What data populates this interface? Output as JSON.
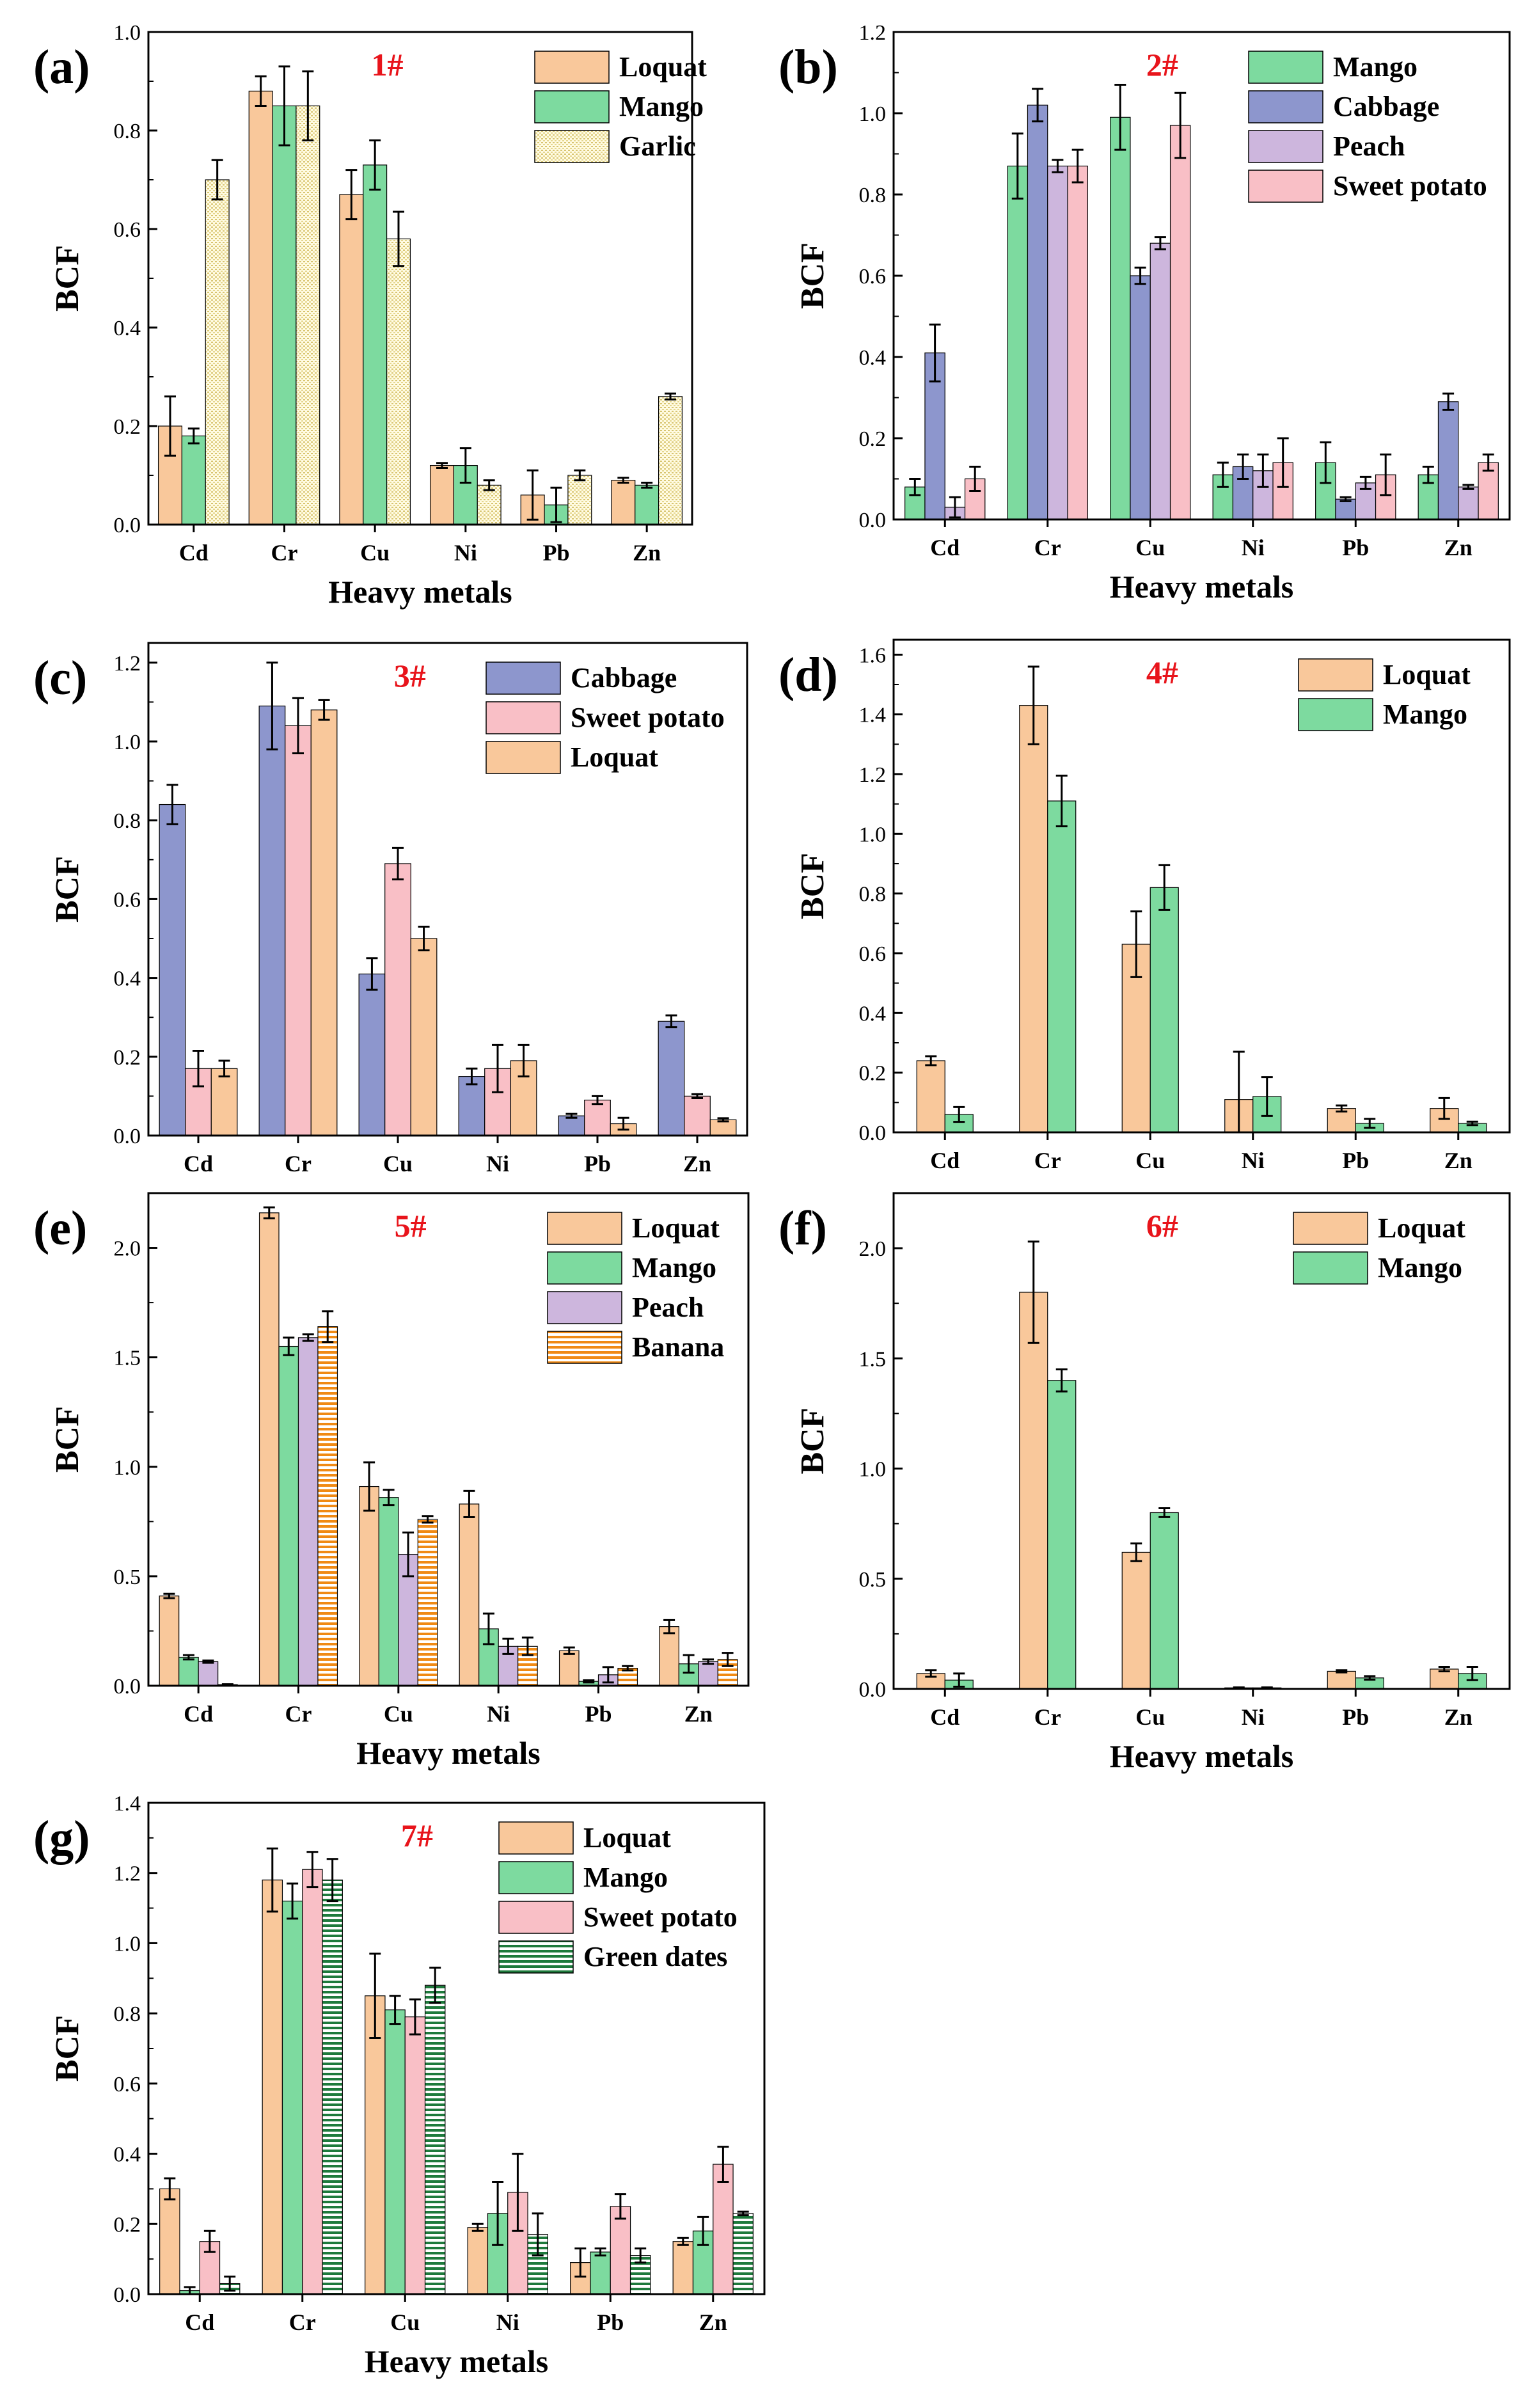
{
  "figure": {
    "metals": [
      "Cd",
      "Cr",
      "Cu",
      "Ni",
      "Pb",
      "Zn"
    ],
    "xlabel": "Heavy metals",
    "ylabel": "BCF"
  },
  "styles": {
    "Loquat": {
      "fill": "#F9C89B",
      "pattern": "solid"
    },
    "Mango": {
      "fill": "#7DDA9F",
      "pattern": "solid"
    },
    "Garlic": {
      "fill": "#FFFBE2",
      "pattern": "dots",
      "line": "#D8C470"
    },
    "Cabbage": {
      "fill": "#8D96CD",
      "pattern": "solid"
    },
    "Peach": {
      "fill": "#CDB6DD",
      "pattern": "solid"
    },
    "Sweet potato": {
      "fill": "#F9BFC6",
      "pattern": "solid"
    },
    "Banana": {
      "fill": "#FFFFFF",
      "pattern": "hstripe",
      "line": "#F08A14"
    },
    "Green dates": {
      "fill": "#FFFFFF",
      "pattern": "hstripe",
      "line": "#1E7A3C"
    }
  },
  "chart_data": [
    {
      "type": "bar",
      "panel": "(a)",
      "title": "1#",
      "ylim": [
        0,
        1.0
      ],
      "yticks": [
        0.0,
        0.2,
        0.4,
        0.6,
        0.8,
        1.0
      ],
      "yticklabels": [
        "0.0",
        "0.2",
        "0.4",
        "0.6",
        "0.8",
        "1.0"
      ],
      "ylabel": "BCF",
      "xlabel": "Heavy metals",
      "show_xlabel": true,
      "categories": [
        "Cd",
        "Cr",
        "Cu",
        "Ni",
        "Pb",
        "Zn"
      ],
      "legend": "top-right",
      "series": [
        {
          "name": "Loquat",
          "values": [
            0.2,
            0.88,
            0.67,
            0.12,
            0.06,
            0.09
          ],
          "errors": [
            0.06,
            0.03,
            0.05,
            0.005,
            0.05,
            0.005
          ]
        },
        {
          "name": "Mango",
          "values": [
            0.18,
            0.85,
            0.73,
            0.12,
            0.04,
            0.08
          ],
          "errors": [
            0.015,
            0.08,
            0.05,
            0.035,
            0.035,
            0.005
          ]
        },
        {
          "name": "Garlic",
          "values": [
            0.7,
            0.85,
            0.58,
            0.08,
            0.1,
            0.26
          ],
          "errors": [
            0.04,
            0.07,
            0.055,
            0.01,
            0.01,
            0.006
          ]
        }
      ]
    },
    {
      "type": "bar",
      "panel": "(b)",
      "title": "2#",
      "ylim": [
        0,
        1.2
      ],
      "yticks": [
        0.0,
        0.2,
        0.4,
        0.6,
        0.8,
        1.0,
        1.2
      ],
      "yticklabels": [
        "0.0",
        "0.2",
        "0.4",
        "0.6",
        "0.8",
        "1.0",
        "1.2"
      ],
      "ylabel": "BCF",
      "xlabel": "Heavy metals",
      "show_xlabel": true,
      "categories": [
        "Cd",
        "Cr",
        "Cu",
        "Ni",
        "Pb",
        "Zn"
      ],
      "legend": "top-right",
      "series": [
        {
          "name": "Mango",
          "values": [
            0.08,
            0.87,
            0.99,
            0.11,
            0.14,
            0.11
          ],
          "errors": [
            0.02,
            0.08,
            0.08,
            0.03,
            0.05,
            0.02
          ]
        },
        {
          "name": "Cabbage",
          "values": [
            0.41,
            1.02,
            0.6,
            0.13,
            0.05,
            0.29
          ],
          "errors": [
            0.07,
            0.04,
            0.02,
            0.03,
            0.005,
            0.02
          ]
        },
        {
          "name": "Peach",
          "values": [
            0.03,
            0.87,
            0.68,
            0.12,
            0.09,
            0.08
          ],
          "errors": [
            0.025,
            0.015,
            0.015,
            0.04,
            0.015,
            0.005
          ]
        },
        {
          "name": "Sweet potato",
          "values": [
            0.1,
            0.87,
            0.97,
            0.14,
            0.11,
            0.14
          ],
          "errors": [
            0.03,
            0.04,
            0.08,
            0.06,
            0.05,
            0.02
          ]
        }
      ]
    },
    {
      "type": "bar",
      "panel": "(c)",
      "title": "3#",
      "ylim": [
        0,
        1.25
      ],
      "yticks": [
        0.0,
        0.2,
        0.4,
        0.6,
        0.8,
        1.0,
        1.2
      ],
      "yticklabels": [
        "0.0",
        "0.2",
        "0.4",
        "0.6",
        "0.8",
        "1.0",
        "1.2"
      ],
      "ylabel": "BCF",
      "xlabel": "",
      "show_xlabel": false,
      "categories": [
        "Cd",
        "Cr",
        "Cu",
        "Ni",
        "Pb",
        "Zn"
      ],
      "legend": "top-right",
      "series": [
        {
          "name": "Cabbage",
          "values": [
            0.84,
            1.09,
            0.41,
            0.15,
            0.05,
            0.29
          ],
          "errors": [
            0.05,
            0.11,
            0.04,
            0.02,
            0.005,
            0.015
          ]
        },
        {
          "name": "Sweet potato",
          "values": [
            0.17,
            1.04,
            0.69,
            0.17,
            0.09,
            0.1
          ],
          "errors": [
            0.045,
            0.07,
            0.04,
            0.06,
            0.01,
            0.005
          ]
        },
        {
          "name": "Loquat",
          "values": [
            0.17,
            1.08,
            0.5,
            0.19,
            0.03,
            0.04
          ],
          "errors": [
            0.02,
            0.025,
            0.03,
            0.04,
            0.015,
            0.004
          ]
        }
      ]
    },
    {
      "type": "bar",
      "panel": "(d)",
      "title": "4#",
      "ylim": [
        0,
        1.65
      ],
      "yticks": [
        0.0,
        0.2,
        0.4,
        0.6,
        0.8,
        1.0,
        1.2,
        1.4,
        1.6
      ],
      "yticklabels": [
        "0.0",
        "0.2",
        "0.4",
        "0.6",
        "0.8",
        "1.0",
        "1.2",
        "1.4",
        "1.6"
      ],
      "ylabel": "BCF",
      "xlabel": "",
      "show_xlabel": false,
      "categories": [
        "Cd",
        "Cr",
        "Cu",
        "Ni",
        "Pb",
        "Zn"
      ],
      "legend": "top-right",
      "series": [
        {
          "name": "Loquat",
          "values": [
            0.24,
            1.43,
            0.63,
            0.11,
            0.08,
            0.08
          ],
          "errors": [
            0.015,
            0.13,
            0.11,
            0.16,
            0.01,
            0.035
          ]
        },
        {
          "name": "Mango",
          "values": [
            0.06,
            1.11,
            0.82,
            0.12,
            0.03,
            0.03
          ],
          "errors": [
            0.025,
            0.085,
            0.075,
            0.065,
            0.015,
            0.006
          ]
        }
      ]
    },
    {
      "type": "bar",
      "panel": "(e)",
      "title": "5#",
      "ylim": [
        0,
        2.25
      ],
      "yticks": [
        0.0,
        0.5,
        1.0,
        1.5,
        2.0
      ],
      "yticklabels": [
        "0.0",
        "0.5",
        "1.0",
        "1.5",
        "2.0"
      ],
      "ylabel": "BCF",
      "xlabel": "Heavy metals",
      "show_xlabel": true,
      "categories": [
        "Cd",
        "Cr",
        "Cu",
        "Ni",
        "Pb",
        "Zn"
      ],
      "legend": "top-right",
      "series": [
        {
          "name": "Loquat",
          "values": [
            0.41,
            2.16,
            0.91,
            0.83,
            0.16,
            0.27
          ],
          "errors": [
            0.01,
            0.025,
            0.11,
            0.06,
            0.015,
            0.03
          ]
        },
        {
          "name": "Mango",
          "values": [
            0.13,
            1.55,
            0.86,
            0.26,
            0.02,
            0.1
          ],
          "errors": [
            0.01,
            0.04,
            0.035,
            0.07,
            0.005,
            0.04
          ]
        },
        {
          "name": "Peach",
          "values": [
            0.11,
            1.59,
            0.6,
            0.18,
            0.05,
            0.11
          ],
          "errors": [
            0.005,
            0.015,
            0.1,
            0.035,
            0.035,
            0.01
          ]
        },
        {
          "name": "Banana",
          "values": [
            0.005,
            1.64,
            0.76,
            0.18,
            0.08,
            0.12
          ],
          "errors": [
            0.002,
            0.07,
            0.015,
            0.04,
            0.01,
            0.03
          ]
        }
      ]
    },
    {
      "type": "bar",
      "panel": "(f)",
      "title": "6#",
      "ylim": [
        0,
        2.25
      ],
      "yticks": [
        0.0,
        0.5,
        1.0,
        1.5,
        2.0
      ],
      "yticklabels": [
        "0.0",
        "0.5",
        "1.0",
        "1.5",
        "2.0"
      ],
      "ylabel": "BCF",
      "xlabel": "Heavy metals",
      "show_xlabel": true,
      "categories": [
        "Cd",
        "Cr",
        "Cu",
        "Ni",
        "Pb",
        "Zn"
      ],
      "legend": "top-right",
      "series": [
        {
          "name": "Loquat",
          "values": [
            0.07,
            1.8,
            0.62,
            0.005,
            0.08,
            0.09
          ],
          "errors": [
            0.015,
            0.23,
            0.04,
            0.002,
            0.005,
            0.01
          ]
        },
        {
          "name": "Mango",
          "values": [
            0.04,
            1.4,
            0.8,
            0.005,
            0.05,
            0.07
          ],
          "errors": [
            0.03,
            0.05,
            0.02,
            0.002,
            0.008,
            0.03
          ]
        }
      ]
    },
    {
      "type": "bar",
      "panel": "(g)",
      "title": "7#",
      "ylim": [
        0,
        1.4
      ],
      "yticks": [
        0.0,
        0.2,
        0.4,
        0.6,
        0.8,
        1.0,
        1.2,
        1.4
      ],
      "yticklabels": [
        "0.0",
        "0.2",
        "0.4",
        "0.6",
        "0.8",
        "1.0",
        "1.2",
        "1.4"
      ],
      "ylabel": "BCF",
      "xlabel": "Heavy metals",
      "show_xlabel": true,
      "categories": [
        "Cd",
        "Cr",
        "Cu",
        "Ni",
        "Pb",
        "Zn"
      ],
      "legend": "top-right",
      "series": [
        {
          "name": "Loquat",
          "values": [
            0.3,
            1.18,
            0.85,
            0.19,
            0.09,
            0.15
          ],
          "errors": [
            0.03,
            0.09,
            0.12,
            0.01,
            0.04,
            0.01
          ]
        },
        {
          "name": "Mango",
          "values": [
            0.01,
            1.12,
            0.81,
            0.23,
            0.12,
            0.18
          ],
          "errors": [
            0.01,
            0.05,
            0.04,
            0.09,
            0.01,
            0.04
          ]
        },
        {
          "name": "Sweet potato",
          "values": [
            0.15,
            1.21,
            0.79,
            0.29,
            0.25,
            0.37
          ],
          "errors": [
            0.03,
            0.05,
            0.05,
            0.11,
            0.035,
            0.05
          ]
        },
        {
          "name": "Green dates",
          "values": [
            0.03,
            1.18,
            0.88,
            0.17,
            0.11,
            0.23
          ],
          "errors": [
            0.02,
            0.06,
            0.05,
            0.06,
            0.02,
            0.005
          ]
        }
      ]
    }
  ]
}
